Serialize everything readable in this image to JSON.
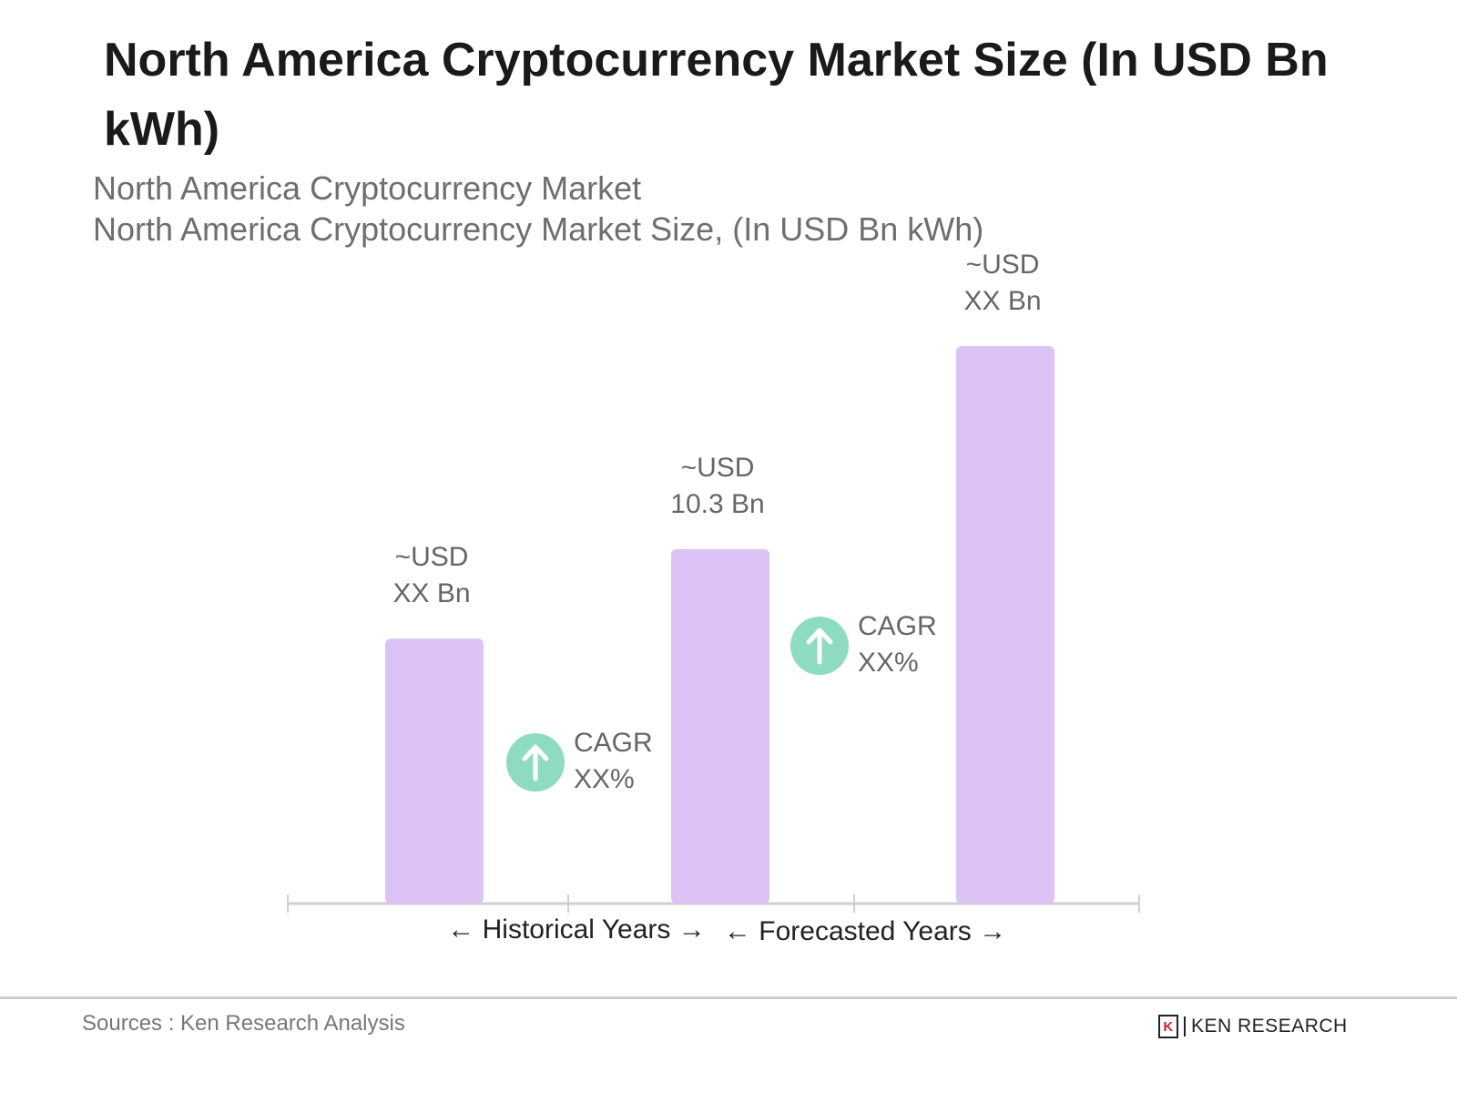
{
  "title": "North America Cryptocurrency Market Size (In USD Bn kWh)",
  "subtitle_line1": "North America Cryptocurrency Market",
  "subtitle_line2": "North America Cryptocurrency Market Size, (In USD Bn kWh)",
  "source": "Sources : Ken Research Analysis",
  "logo_text": "KEN RESEARCH",
  "chart_data": {
    "type": "bar",
    "categories": [
      "",
      "",
      ""
    ],
    "values": [
      7.7,
      10.3,
      16.2
    ],
    "data_labels": [
      [
        "~USD",
        "XX Bn"
      ],
      [
        "~USD",
        "10.3 Bn"
      ],
      [
        "~USD",
        "XX Bn"
      ]
    ],
    "bar_color": "#dcc3f5",
    "ylim": [
      0,
      16.2
    ],
    "grid": false,
    "cagr_annotations": [
      [
        "CAGR",
        "XX%"
      ],
      [
        "CAGR",
        "XX%"
      ]
    ],
    "cagr_color": "#8ddcc2",
    "period_labels": [
      "Historical Years",
      "Forecasted Years"
    ]
  }
}
